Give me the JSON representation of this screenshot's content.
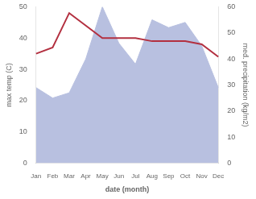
{
  "chart_data": {
    "type": "line",
    "xlabel": "date (month)",
    "ylabel": "max temp (C)",
    "y2label": "med. precipitation (kg/m2)",
    "categories": [
      "Jan",
      "Feb",
      "Mar",
      "Apr",
      "May",
      "Jun",
      "Jul",
      "Aug",
      "Sep",
      "Oct",
      "Nov",
      "Dec"
    ],
    "series": [
      {
        "type": "area",
        "axis": "y2",
        "color": "#b8c0e0",
        "values": [
          29,
          25,
          27,
          40,
          60,
          46,
          38,
          55,
          52,
          54,
          45,
          29
        ]
      },
      {
        "type": "line",
        "color": "#b33040",
        "values": [
          35,
          37,
          48,
          44,
          40,
          40,
          40,
          39,
          39,
          39,
          38,
          34
        ]
      }
    ],
    "ylim": [
      0,
      50
    ],
    "yticks": [
      0,
      10,
      20,
      30,
      40,
      50
    ],
    "y2lim": [
      0,
      60
    ],
    "y2ticks": [
      0,
      10,
      20,
      30,
      40,
      50,
      60
    ],
    "grid": false
  }
}
